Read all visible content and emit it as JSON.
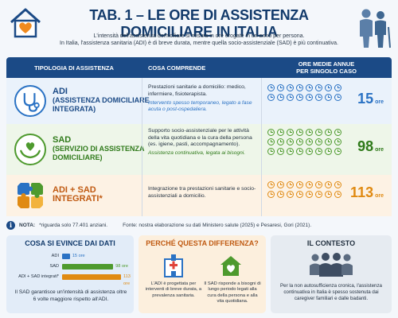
{
  "header": {
    "title": "TAB. 1 – LE ORE DI ASSISTENZA DOMICILIARE IN ITALIA",
    "subtitle_line1": "L'intensità dell'assistenza domiciliare si misura in ore erogate in un anno per persona.",
    "subtitle_line2": "In Italia, l'assistenza sanitaria (ADI) è di breve durata, mentre quella socio-assistenziale (SAD) è più continuativa."
  },
  "table": {
    "col1": "TIPOLOGIA DI ASSISTENZA",
    "col2": "COSA COMPRENDE",
    "col3_line1": "ORE MEDIE ANNUE",
    "col3_line2": "PER SINGOLO CASO",
    "rows": [
      {
        "name": "ADI",
        "sub1": "(ASSISTENZA DOMICILIARE",
        "sub2": "INTEGRATA)",
        "desc": "Prestazioni sanitarie a domicilio: medico, infermiere, fisioterapista.",
        "note": "Intervento spesso temporaneo, legato a fase acuta o post-ospedaliera.",
        "hours": "15",
        "unit": "ore",
        "color": "#2a72c4",
        "clock_count": 16
      },
      {
        "name": "SAD",
        "sub1": "(SERVIZIO DI ASSISTENZA",
        "sub2": "DOMICILIARE)",
        "desc": "Supporto socio-assistenziale per le attività della vita quotidiana e la cura della persona (es. igiene, pasti, accompagnamento).",
        "note": "Assistenza continuativa, legata ai bisogni.",
        "hours": "98",
        "unit": "ore",
        "color": "#4e9a2e",
        "clock_count": 24
      },
      {
        "name": "ADI + SAD",
        "sub1": "INTEGRATI*",
        "desc": "Integrazione tra prestazioni sanitarie e socio-assistenziali a domicilio.",
        "hours": "113",
        "unit": "ore",
        "color": "#e08a12",
        "clock_count": 16
      }
    ]
  },
  "note": {
    "label": "NOTA:",
    "text": "*riguarda solo 77.401 anziani.",
    "source": "Fonte: nostra elaborazione su dati Ministero salute (2025) e Pesaresi, Gori (2021)."
  },
  "panel1": {
    "title": "COSA SI EVINCE DAI DATI",
    "bars": [
      {
        "label": "ADI",
        "value": 15,
        "value_label": "15 ore",
        "color": "#2a72c4"
      },
      {
        "label": "SAD",
        "value": 98,
        "value_label": "98 ore",
        "color": "#4e9a2e"
      },
      {
        "label": "ADI + SAD integrati*",
        "value": 113,
        "value_label": "113 ore",
        "color": "#e08a12"
      }
    ],
    "max": 113,
    "text": "Il SAD garantisce un'intensità di assistenza oltre 6 volte maggiore rispetto all'ADI."
  },
  "panel2": {
    "title": "PERCHÉ QUESTA DIFFERENZA?",
    "left_text": "L'ADI è progettata per interventi di breve durata, a prevalenza sanitaria.",
    "right_text": "Il SAD risponde a bisogni di lungo periodo legati alla cura della persona e alla vita quotidiana."
  },
  "panel3": {
    "title": "IL CONTESTO",
    "text": "Per la non autosufficienza cronica, l'assistenza continuativa in Italia è spesso sostenuta dai caregiver familiari e dalle badanti."
  }
}
